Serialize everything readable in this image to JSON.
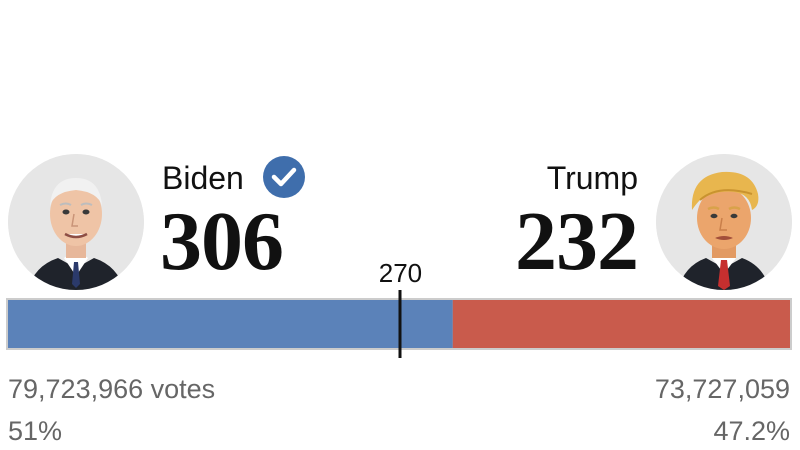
{
  "candidates": {
    "left": {
      "name": "Biden",
      "electoral_votes": "306",
      "popular_votes": "79,723,966 votes",
      "percent": "51%",
      "color": "#5b82b9",
      "winner": true,
      "icon": "checkmark-icon"
    },
    "right": {
      "name": "Trump",
      "electoral_votes": "232",
      "popular_votes": "73,727,059",
      "percent": "47.2%",
      "color": "#c95b4c"
    }
  },
  "threshold": {
    "label": "270"
  },
  "chart_data": {
    "type": "bar",
    "orientation": "horizontal-stacked",
    "total": 538,
    "threshold": 270,
    "series": [
      {
        "name": "Biden",
        "value": 306,
        "color": "#5b82b9"
      },
      {
        "name": "Trump",
        "value": 232,
        "color": "#c95b4c"
      }
    ]
  }
}
